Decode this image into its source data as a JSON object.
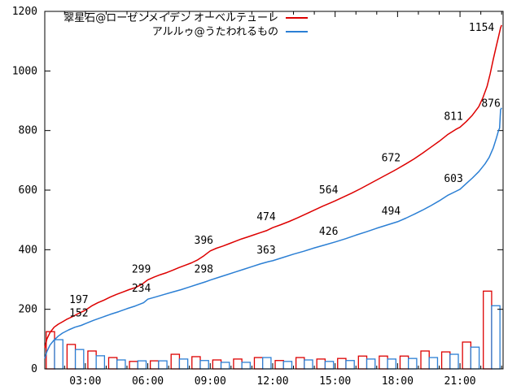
{
  "chart_data": {
    "type": "line",
    "title": "",
    "background_color": "#ffffff",
    "axis_color": "#000000",
    "label_color": "#000000",
    "grid": false,
    "legend_position": "top-center-inside",
    "legend": [
      {
        "label": "翠星石@ローゼンメイデン オーベルテューレ",
        "color": "#dd0000"
      },
      {
        "label": "アルルゥ@うたわれるもの",
        "color": "#2b7fd4"
      }
    ],
    "x_axis": {
      "label": "",
      "unit": "time-of-day",
      "range_hours": [
        1.05,
        23.07
      ],
      "major_tick_hours": [
        3,
        6,
        9,
        12,
        15,
        18,
        21
      ],
      "tick_labels": [
        "03:00",
        "06:00",
        "09:00",
        "12:00",
        "15:00",
        "18:00",
        "21:00"
      ],
      "minor_tick_hours": [
        2,
        4,
        5,
        7,
        8,
        10,
        11,
        13,
        14,
        16,
        17,
        19,
        20,
        22,
        23
      ]
    },
    "y_axis": {
      "label": "",
      "range": [
        0,
        1200
      ],
      "tick_values": [
        0,
        200,
        400,
        600,
        800,
        1000,
        1200
      ],
      "tick_labels": [
        "0",
        "200",
        "400",
        "600",
        "800",
        "1000",
        "1200"
      ]
    },
    "series": [
      {
        "name": "翠星石@ローゼンメイデン オーベルテューレ",
        "color": "#dd0000",
        "points": [
          [
            1.05,
            70
          ],
          [
            1.15,
            100
          ],
          [
            1.3,
            122
          ],
          [
            1.5,
            140
          ],
          [
            1.7,
            150
          ],
          [
            1.9,
            158
          ],
          [
            2.1,
            166
          ],
          [
            2.4,
            176
          ],
          [
            2.7,
            187
          ],
          [
            3.0,
            197
          ],
          [
            3.3,
            211
          ],
          [
            3.6,
            222
          ],
          [
            3.9,
            231
          ],
          [
            4.2,
            241
          ],
          [
            4.5,
            250
          ],
          [
            4.8,
            258
          ],
          [
            5.1,
            266
          ],
          [
            5.4,
            273
          ],
          [
            5.7,
            283
          ],
          [
            6.0,
            299
          ],
          [
            6.3,
            308
          ],
          [
            6.6,
            316
          ],
          [
            6.9,
            323
          ],
          [
            7.2,
            331
          ],
          [
            7.5,
            340
          ],
          [
            7.8,
            348
          ],
          [
            8.1,
            356
          ],
          [
            8.4,
            366
          ],
          [
            8.7,
            380
          ],
          [
            9.0,
            396
          ],
          [
            9.3,
            405
          ],
          [
            9.6,
            412
          ],
          [
            9.9,
            420
          ],
          [
            10.2,
            428
          ],
          [
            10.5,
            436
          ],
          [
            10.8,
            443
          ],
          [
            11.1,
            450
          ],
          [
            11.4,
            457
          ],
          [
            11.7,
            464
          ],
          [
            12.0,
            474
          ],
          [
            12.4,
            484
          ],
          [
            12.8,
            495
          ],
          [
            13.2,
            507
          ],
          [
            13.6,
            520
          ],
          [
            14.0,
            533
          ],
          [
            14.4,
            546
          ],
          [
            14.8,
            558
          ],
          [
            15.0,
            564
          ],
          [
            15.4,
            577
          ],
          [
            15.8,
            590
          ],
          [
            16.2,
            604
          ],
          [
            16.6,
            619
          ],
          [
            17.0,
            634
          ],
          [
            17.4,
            649
          ],
          [
            17.8,
            664
          ],
          [
            18.0,
            672
          ],
          [
            18.4,
            688
          ],
          [
            18.8,
            705
          ],
          [
            19.2,
            724
          ],
          [
            19.6,
            744
          ],
          [
            20.0,
            764
          ],
          [
            20.4,
            786
          ],
          [
            20.8,
            804
          ],
          [
            21.0,
            811
          ],
          [
            21.3,
            830
          ],
          [
            21.6,
            852
          ],
          [
            21.9,
            880
          ],
          [
            22.1,
            910
          ],
          [
            22.3,
            948
          ],
          [
            22.45,
            990
          ],
          [
            22.6,
            1040
          ],
          [
            22.75,
            1085
          ],
          [
            22.85,
            1115
          ],
          [
            22.95,
            1145
          ],
          [
            23.0,
            1154
          ]
        ]
      },
      {
        "name": "アルルゥ@うたわれるもの",
        "color": "#2b7fd4",
        "points": [
          [
            1.05,
            35
          ],
          [
            1.15,
            58
          ],
          [
            1.3,
            80
          ],
          [
            1.5,
            97
          ],
          [
            1.7,
            110
          ],
          [
            1.9,
            120
          ],
          [
            2.2,
            131
          ],
          [
            2.5,
            140
          ],
          [
            2.8,
            146
          ],
          [
            3.0,
            152
          ],
          [
            3.4,
            163
          ],
          [
            3.8,
            173
          ],
          [
            4.2,
            183
          ],
          [
            4.6,
            192
          ],
          [
            5.0,
            202
          ],
          [
            5.4,
            211
          ],
          [
            5.8,
            222
          ],
          [
            6.0,
            234
          ],
          [
            6.4,
            242
          ],
          [
            6.8,
            250
          ],
          [
            7.2,
            258
          ],
          [
            7.6,
            266
          ],
          [
            8.0,
            275
          ],
          [
            8.4,
            284
          ],
          [
            8.8,
            293
          ],
          [
            9.0,
            298
          ],
          [
            9.4,
            307
          ],
          [
            9.8,
            316
          ],
          [
            10.2,
            325
          ],
          [
            10.6,
            334
          ],
          [
            11.0,
            343
          ],
          [
            11.4,
            352
          ],
          [
            11.8,
            360
          ],
          [
            12.0,
            363
          ],
          [
            12.5,
            374
          ],
          [
            13.0,
            385
          ],
          [
            13.5,
            395
          ],
          [
            14.0,
            406
          ],
          [
            14.5,
            416
          ],
          [
            15.0,
            426
          ],
          [
            15.5,
            437
          ],
          [
            16.0,
            449
          ],
          [
            16.5,
            460
          ],
          [
            17.0,
            472
          ],
          [
            17.5,
            483
          ],
          [
            18.0,
            494
          ],
          [
            18.4,
            506
          ],
          [
            18.8,
            519
          ],
          [
            19.2,
            533
          ],
          [
            19.6,
            548
          ],
          [
            20.0,
            564
          ],
          [
            20.4,
            582
          ],
          [
            20.8,
            596
          ],
          [
            21.0,
            603
          ],
          [
            21.3,
            622
          ],
          [
            21.6,
            641
          ],
          [
            21.9,
            662
          ],
          [
            22.2,
            688
          ],
          [
            22.4,
            710
          ],
          [
            22.6,
            742
          ],
          [
            22.75,
            775
          ],
          [
            22.85,
            800
          ],
          [
            22.9,
            808
          ],
          [
            22.95,
            870
          ],
          [
            23.0,
            876
          ]
        ]
      }
    ],
    "point_labels": [
      {
        "series": 0,
        "text": "197",
        "t": 3,
        "v": 197
      },
      {
        "series": 0,
        "text": "299",
        "t": 6,
        "v": 299
      },
      {
        "series": 0,
        "text": "396",
        "t": 9,
        "v": 396
      },
      {
        "series": 0,
        "text": "474",
        "t": 12,
        "v": 474
      },
      {
        "series": 0,
        "text": "564",
        "t": 15,
        "v": 564
      },
      {
        "series": 0,
        "text": "672",
        "t": 18,
        "v": 672
      },
      {
        "series": 0,
        "text": "811",
        "t": 21,
        "v": 811
      },
      {
        "series": 0,
        "text": "1154",
        "t": 22.35,
        "v": 1110
      },
      {
        "series": 1,
        "text": "152",
        "t": 3,
        "v": 152
      },
      {
        "series": 1,
        "text": "234",
        "t": 6,
        "v": 234
      },
      {
        "series": 1,
        "text": "298",
        "t": 9,
        "v": 298
      },
      {
        "series": 1,
        "text": "363",
        "t": 12,
        "v": 363
      },
      {
        "series": 1,
        "text": "426",
        "t": 15,
        "v": 426
      },
      {
        "series": 1,
        "text": "494",
        "t": 18,
        "v": 494
      },
      {
        "series": 1,
        "text": "603",
        "t": 21,
        "v": 603
      },
      {
        "series": 1,
        "text": "876",
        "t": 22.8,
        "v": 855
      }
    ],
    "hourly_bars": {
      "style": "outlined-boxes-white-fill",
      "hours": [
        1,
        2,
        3,
        4,
        5,
        6,
        7,
        8,
        9,
        10,
        11,
        12,
        13,
        14,
        15,
        16,
        17,
        18,
        19,
        20,
        21,
        22
      ],
      "red_values": [
        125,
        82,
        60,
        38,
        25,
        27,
        49,
        41,
        30,
        33,
        38,
        28,
        38,
        33,
        35,
        43,
        43,
        43,
        60,
        57,
        90,
        261
      ],
      "blue_values": [
        98,
        65,
        44,
        30,
        27,
        27,
        33,
        28,
        22,
        22,
        38,
        25,
        30,
        25,
        28,
        33,
        33,
        35,
        38,
        49,
        73,
        212
      ]
    }
  }
}
